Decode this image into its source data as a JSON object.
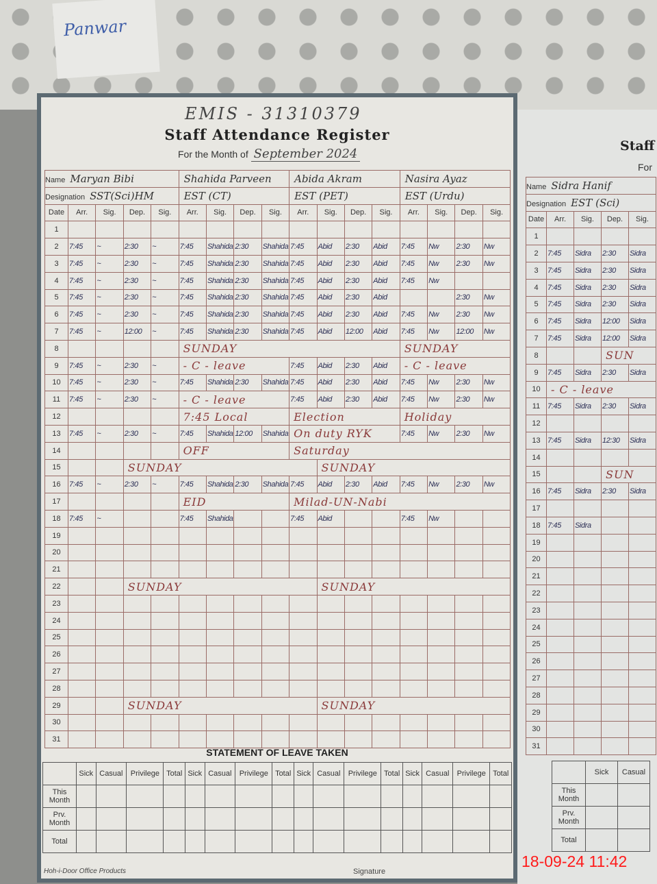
{
  "background_note": "Panwar",
  "register": {
    "emis": "EMIS - 31310379",
    "title": "Staff Attendance Register",
    "month_label": "For the Month of",
    "month_value": "September 2024",
    "name_label": "Name",
    "designation_label": "Designation",
    "date_label": "Date",
    "col_labels": [
      "Arr.",
      "Sig.",
      "Dep.",
      "Sig."
    ],
    "staff": [
      {
        "name": "Maryan Bibi",
        "designation": "SST(Sci)HM"
      },
      {
        "name": "Shahida Parveen",
        "designation": "EST (CT)"
      },
      {
        "name": "Abida Akram",
        "designation": "EST (PET)"
      },
      {
        "name": "Nasira Ayaz",
        "designation": "EST (Urdu)"
      }
    ],
    "rows": [
      {
        "d": "1",
        "c": [
          "",
          "",
          "",
          "",
          "",
          "",
          "",
          "",
          "",
          "",
          "",
          "",
          "",
          "",
          "",
          ""
        ]
      },
      {
        "d": "2",
        "c": [
          "7:45",
          "~",
          "2:30",
          "~",
          "7:45",
          "Shahida",
          "2:30",
          "Shahida",
          "7:45",
          "Abid",
          "2:30",
          "Abid",
          "7:45",
          "Nw",
          "2:30",
          "Nw"
        ]
      },
      {
        "d": "3",
        "c": [
          "7:45",
          "~",
          "2:30",
          "~",
          "7:45",
          "Shahida",
          "2:30",
          "Shahida",
          "7:45",
          "Abid",
          "2:30",
          "Abid",
          "7:45",
          "Nw",
          "2:30",
          "Nw"
        ]
      },
      {
        "d": "4",
        "c": [
          "7:45",
          "~",
          "2:30",
          "~",
          "7:45",
          "Shahida",
          "2:30",
          "Shahida",
          "7:45",
          "Abid",
          "2:30",
          "Abid",
          "7:45",
          "Nw",
          "",
          ""
        ]
      },
      {
        "d": "5",
        "c": [
          "7:45",
          "~",
          "2:30",
          "~",
          "7:45",
          "Shahida",
          "2:30",
          "Shahida",
          "7:45",
          "Abid",
          "2:30",
          "Abid",
          "",
          "",
          "2:30",
          "Nw"
        ]
      },
      {
        "d": "6",
        "c": [
          "7:45",
          "~",
          "2:30",
          "~",
          "7:45",
          "Shahida",
          "2:30",
          "Shahida",
          "7:45",
          "Abid",
          "2:30",
          "Abid",
          "7:45",
          "Nw",
          "2:30",
          "Nw"
        ]
      },
      {
        "d": "7",
        "c": [
          "7:45",
          "~",
          "12:00",
          "~",
          "7:45",
          "Shahida",
          "2:30",
          "Shahida",
          "7:45",
          "Abid",
          "12:00",
          "Abid",
          "7:45",
          "Nw",
          "12:00",
          "Nw"
        ]
      },
      {
        "d": "8",
        "n": true,
        "c": [
          "",
          "",
          "",
          "",
          "SUNDAY",
          "",
          "",
          "",
          "",
          "",
          "",
          "",
          "SUNDAY",
          "",
          "",
          ""
        ]
      },
      {
        "d": "9",
        "c": [
          "7:45",
          "~",
          "2:30",
          "~",
          "- C - leave",
          "",
          "",
          "",
          "7:45",
          "Abid",
          "2:30",
          "Abid",
          "- C - leave",
          "",
          "",
          ""
        ]
      },
      {
        "d": "10",
        "c": [
          "7:45",
          "~",
          "2:30",
          "~",
          "7:45",
          "Shahida",
          "2:30",
          "Shahida",
          "7:45",
          "Abid",
          "2:30",
          "Abid",
          "7:45",
          "Nw",
          "2:30",
          "Nw"
        ]
      },
      {
        "d": "11",
        "c": [
          "7:45",
          "~",
          "2:30",
          "~",
          "- C - leave",
          "",
          "",
          "",
          "7:45",
          "Abid",
          "2:30",
          "Abid",
          "7:45",
          "Nw",
          "2:30",
          "Nw"
        ]
      },
      {
        "d": "12",
        "n": true,
        "c": [
          "",
          "",
          "",
          "",
          "7:45 Local",
          "",
          "",
          "",
          "Election",
          "",
          "",
          "",
          "Holiday",
          "",
          "",
          ""
        ]
      },
      {
        "d": "13",
        "c": [
          "7:45",
          "~",
          "2:30",
          "~",
          "7:45",
          "Shahida",
          "12:00",
          "Shahida",
          "On duty RYK",
          "",
          "",
          "",
          "7:45",
          "Nw",
          "2:30",
          "Nw"
        ]
      },
      {
        "d": "14",
        "n": true,
        "c": [
          "",
          "",
          "",
          "",
          "OFF",
          "",
          "",
          "",
          "Saturday",
          "",
          "",
          "",
          "",
          "",
          "",
          ""
        ]
      },
      {
        "d": "15",
        "n": true,
        "c": [
          "",
          "",
          "SUNDAY",
          "",
          "",
          "",
          "",
          "",
          "",
          "SUNDAY",
          "",
          "",
          "",
          "",
          "",
          ""
        ]
      },
      {
        "d": "16",
        "c": [
          "7:45",
          "~",
          "2:30",
          "~",
          "7:45",
          "Shahida",
          "2:30",
          "Shahida",
          "7:45",
          "Abid",
          "2:30",
          "Abid",
          "7:45",
          "Nw",
          "2:30",
          "Nw"
        ]
      },
      {
        "d": "17",
        "n": true,
        "c": [
          "",
          "",
          "",
          "",
          "EID",
          "",
          "",
          "",
          "Milad-UN-Nabi",
          "",
          "",
          "",
          "",
          "",
          "",
          ""
        ]
      },
      {
        "d": "18",
        "c": [
          "7:45",
          "~",
          "",
          "",
          "7:45",
          "Shahida",
          "",
          "",
          "7:45",
          "Abid",
          "",
          "",
          "7:45",
          "Nw",
          "",
          ""
        ]
      },
      {
        "d": "19",
        "c": []
      },
      {
        "d": "20",
        "c": []
      },
      {
        "d": "21",
        "c": []
      },
      {
        "d": "22",
        "n": true,
        "c": [
          "",
          "",
          "SUNDAY",
          "",
          "",
          "",
          "",
          "",
          "",
          "SUNDAY",
          "",
          "",
          "",
          "",
          "",
          ""
        ]
      },
      {
        "d": "23",
        "c": []
      },
      {
        "d": "24",
        "c": []
      },
      {
        "d": "25",
        "c": []
      },
      {
        "d": "26",
        "c": []
      },
      {
        "d": "27",
        "c": []
      },
      {
        "d": "28",
        "c": []
      },
      {
        "d": "29",
        "n": true,
        "c": [
          "",
          "",
          "SUNDAY",
          "",
          "",
          "",
          "",
          "",
          "",
          "SUNDAY",
          "",
          "",
          "",
          "",
          "",
          ""
        ]
      },
      {
        "d": "30",
        "c": []
      },
      {
        "d": "31",
        "c": []
      }
    ],
    "leave": {
      "title": "STATEMENT OF LEAVE TAKEN",
      "cols": [
        "Sick",
        "Casual",
        "Privilege",
        "Total"
      ],
      "rows": [
        "This Month",
        "Prv. Month",
        "Total"
      ]
    },
    "footer_brand": "Hoh-i-Door Office Products",
    "footer_signature": "Signature"
  },
  "page2": {
    "title": "Staff",
    "for_label": "For",
    "staff": {
      "name": "Sidra Hanif",
      "designation": "EST (Sci)"
    },
    "rows": [
      [
        "",
        "",
        "",
        ""
      ],
      [
        "7:45",
        "Sidra",
        "2:30",
        "Sidra"
      ],
      [
        "7:45",
        "Sidra",
        "2:30",
        "Sidra"
      ],
      [
        "7:45",
        "Sidra",
        "2:30",
        "Sidra"
      ],
      [
        "7:45",
        "Sidra",
        "2:30",
        "Sidra"
      ],
      [
        "7:45",
        "Sidra",
        "12:00",
        "Sidra"
      ],
      [
        "7:45",
        "Sidra",
        "12:00",
        "Sidra"
      ],
      [
        "",
        "",
        "SUN",
        ""
      ],
      [
        "7:45",
        "Sidra",
        "2:30",
        "Sidra"
      ],
      [
        "- C - leave",
        "",
        "",
        ""
      ],
      [
        "7:45",
        "Sidra",
        "2:30",
        "Sidra"
      ],
      [
        "",
        "",
        "",
        ""
      ],
      [
        "7:45",
        "Sidra",
        "12:30",
        "Sidra"
      ],
      [
        "",
        "",
        "",
        ""
      ],
      [
        "",
        "",
        "SUN",
        ""
      ],
      [
        "7:45",
        "Sidra",
        "2:30",
        "Sidra"
      ],
      [
        "",
        "",
        "",
        ""
      ],
      [
        "7:45",
        "Sidra",
        "",
        ""
      ],
      [
        "",
        "",
        "",
        ""
      ],
      [
        "",
        "",
        "",
        ""
      ],
      [
        "",
        "",
        "",
        ""
      ],
      [
        "",
        "",
        "",
        ""
      ],
      [
        "",
        "",
        "",
        ""
      ],
      [
        "",
        "",
        "",
        ""
      ],
      [
        "",
        "",
        "",
        ""
      ],
      [
        "",
        "",
        "",
        ""
      ],
      [
        "",
        "",
        "",
        ""
      ],
      [
        "",
        "",
        "",
        ""
      ],
      [
        "",
        "",
        "",
        ""
      ],
      [
        "",
        "",
        "",
        ""
      ],
      [
        "",
        "",
        "",
        ""
      ]
    ],
    "leave_cols": [
      "Sick",
      "Casual"
    ]
  },
  "timestamp": "18-09-24 11:42",
  "colors": {
    "ink_blue": "#2c2f55",
    "ink_red": "#8a3a3a",
    "grid": "#9a6b66",
    "timestamp": "#ff1a1a"
  }
}
